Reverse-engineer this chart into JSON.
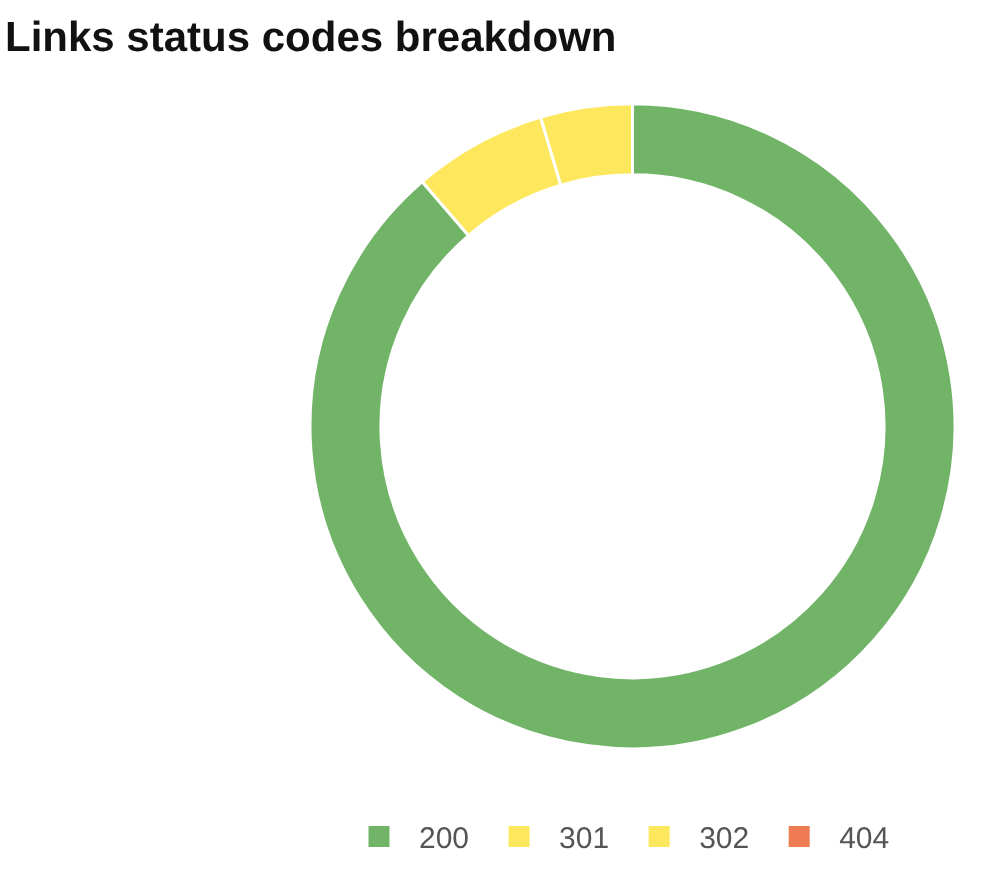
{
  "chart_data": {
    "type": "donut",
    "title": "Links status codes breakdown",
    "categories": [
      "200",
      "301",
      "302",
      "404"
    ],
    "values": [
      88.7,
      6.7,
      4.6,
      0
    ],
    "colors": [
      "#71b468",
      "#fde85d",
      "#fde85d",
      "#ef7b53"
    ],
    "legend": "bottom"
  }
}
